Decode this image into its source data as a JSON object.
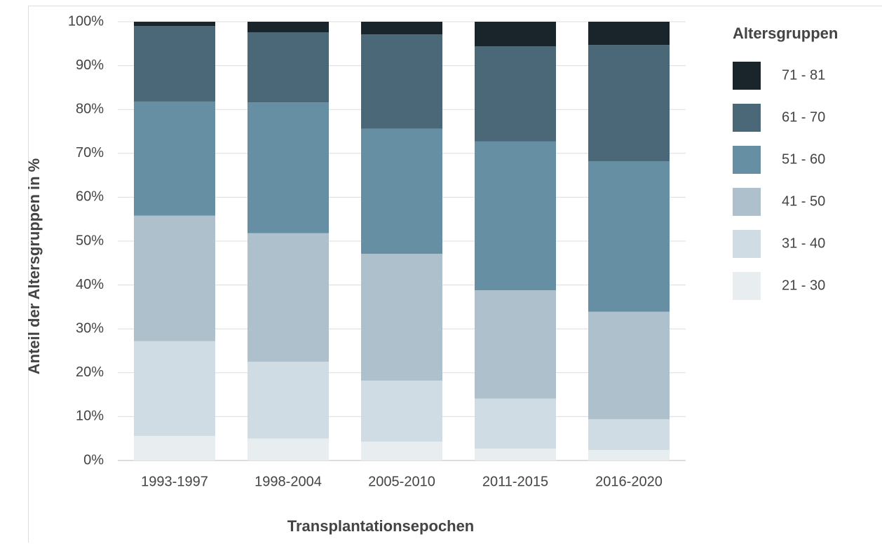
{
  "chart_data": {
    "type": "stacked_bar",
    "x_label": "Transplantationsepochen",
    "y_label": "Anteil der Altersgruppen in %",
    "legend_title": "Altersgruppen",
    "legend": "right",
    "grid": true,
    "categories": [
      "1993-1997",
      "1998-2004",
      "2005-2010",
      "2011-2015",
      "2016-2020"
    ],
    "series": [
      {
        "name": "21 - 30",
        "color": "#e8edf0",
        "values": [
          5.6,
          5.0,
          4.3,
          2.7,
          2.4
        ]
      },
      {
        "name": "31 - 40",
        "color": "#d0dce3",
        "values": [
          21.6,
          17.5,
          13.9,
          11.4,
          7.0
        ]
      },
      {
        "name": "41 - 50",
        "color": "#adc0cb",
        "values": [
          28.6,
          29.3,
          28.9,
          24.7,
          24.5
        ]
      },
      {
        "name": "51 - 60",
        "color": "#668fa3",
        "values": [
          26.0,
          29.8,
          28.5,
          33.9,
          34.3
        ]
      },
      {
        "name": "61 - 70",
        "color": "#4a6878",
        "values": [
          17.2,
          16.0,
          21.5,
          21.7,
          26.5
        ]
      },
      {
        "name": "71 - 81",
        "color": "#1a242b",
        "values": [
          1.0,
          2.4,
          2.9,
          5.6,
          5.3
        ]
      }
    ],
    "ylim": [
      0,
      100
    ],
    "yticks": [
      {
        "value": 0,
        "label": "0%"
      },
      {
        "value": 10,
        "label": "10%"
      },
      {
        "value": 20,
        "label": "20%"
      },
      {
        "value": 30,
        "label": "30%"
      },
      {
        "value": 40,
        "label": "40%"
      },
      {
        "value": 50,
        "label": "50%"
      },
      {
        "value": 60,
        "label": "60%"
      },
      {
        "value": 70,
        "label": "70%"
      },
      {
        "value": 80,
        "label": "80%"
      },
      {
        "value": 90,
        "label": "90%"
      },
      {
        "value": 100,
        "label": "100%"
      }
    ]
  }
}
